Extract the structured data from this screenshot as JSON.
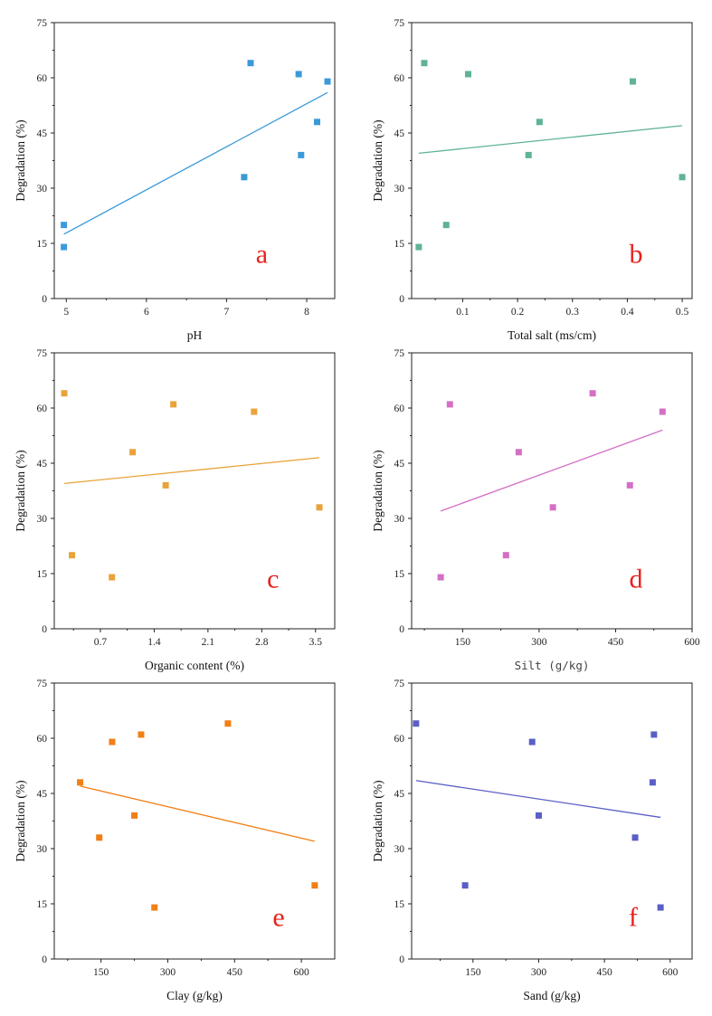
{
  "figure": {
    "ylabel": "Degradation (%)"
  },
  "chart_data": [
    {
      "type": "scatter",
      "panel": "a",
      "letter": "a",
      "xlabel": "pH",
      "ylabel": "Degradation (%)",
      "xlim": [
        4.85,
        8.35
      ],
      "ylim": [
        0,
        75
      ],
      "xticks": [
        5,
        6,
        7,
        8
      ],
      "xtick_labels": [
        "5",
        "6",
        "7",
        "8"
      ],
      "yticks": [
        0,
        15,
        30,
        45,
        60,
        75
      ],
      "color": "#3a9ad9",
      "points": [
        {
          "x": 4.97,
          "y": 20
        },
        {
          "x": 4.97,
          "y": 14
        },
        {
          "x": 7.22,
          "y": 33
        },
        {
          "x": 7.3,
          "y": 64
        },
        {
          "x": 7.9,
          "y": 61
        },
        {
          "x": 7.93,
          "y": 39
        },
        {
          "x": 8.13,
          "y": 48
        },
        {
          "x": 8.26,
          "y": 59
        }
      ],
      "fit": {
        "x": [
          4.97,
          8.26
        ],
        "y": [
          17.5,
          56
        ]
      }
    },
    {
      "type": "scatter",
      "panel": "b",
      "letter": "b",
      "xlabel": "Total salt (ms/cm)",
      "ylabel": "Degradation (%)",
      "xlim": [
        0.007,
        0.518
      ],
      "ylim": [
        0,
        75
      ],
      "xticks": [
        0.1,
        0.2,
        0.3,
        0.4,
        0.5
      ],
      "xtick_labels": [
        "0.1",
        "0.2",
        "0.3",
        "0.4",
        "0.5"
      ],
      "yticks": [
        0,
        15,
        30,
        45,
        60,
        75
      ],
      "color": "#5fb396",
      "points": [
        {
          "x": 0.02,
          "y": 14
        },
        {
          "x": 0.03,
          "y": 64
        },
        {
          "x": 0.07,
          "y": 20
        },
        {
          "x": 0.11,
          "y": 61
        },
        {
          "x": 0.22,
          "y": 39
        },
        {
          "x": 0.24,
          "y": 48
        },
        {
          "x": 0.41,
          "y": 59
        },
        {
          "x": 0.5,
          "y": 33
        }
      ],
      "fit": {
        "x": [
          0.02,
          0.5
        ],
        "y": [
          39.5,
          47
        ]
      }
    },
    {
      "type": "scatter",
      "panel": "c",
      "letter": "c",
      "xlabel": "Organic content (%)",
      "ylabel": "Degradation (%)",
      "xlim": [
        0.1,
        3.75
      ],
      "ylim": [
        0,
        75
      ],
      "xticks": [
        0.7,
        1.4,
        2.1,
        2.8,
        3.5
      ],
      "xtick_labels": [
        "0.7",
        "1.4",
        "2.1",
        "2.8",
        "3.5"
      ],
      "yticks": [
        0,
        15,
        30,
        45,
        60,
        75
      ],
      "color": "#e8a33a",
      "points": [
        {
          "x": 0.23,
          "y": 64
        },
        {
          "x": 0.33,
          "y": 20
        },
        {
          "x": 0.85,
          "y": 14
        },
        {
          "x": 1.12,
          "y": 48
        },
        {
          "x": 1.55,
          "y": 39
        },
        {
          "x": 1.65,
          "y": 61
        },
        {
          "x": 2.7,
          "y": 59
        },
        {
          "x": 3.55,
          "y": 33
        }
      ],
      "fit": {
        "x": [
          0.23,
          3.55
        ],
        "y": [
          39.5,
          46.5
        ]
      }
    },
    {
      "type": "scatter",
      "panel": "d",
      "letter": "d",
      "xlabel": "Silt (g/kg)",
      "ylabel": "Degradation (%)",
      "xlim": [
        50,
        600
      ],
      "ylim": [
        0,
        75
      ],
      "xticks": [
        150,
        300,
        450,
        600
      ],
      "xtick_labels": [
        "150",
        "300",
        "450",
        "600"
      ],
      "yticks": [
        0,
        15,
        30,
        45,
        60,
        75
      ],
      "color": "#d46fc5",
      "points": [
        {
          "x": 107,
          "y": 14
        },
        {
          "x": 125,
          "y": 61
        },
        {
          "x": 235,
          "y": 20
        },
        {
          "x": 260,
          "y": 48
        },
        {
          "x": 327,
          "y": 33
        },
        {
          "x": 405,
          "y": 64
        },
        {
          "x": 478,
          "y": 39
        },
        {
          "x": 542,
          "y": 59
        }
      ],
      "fit": {
        "x": [
          107,
          542
        ],
        "y": [
          32,
          54
        ]
      }
    },
    {
      "type": "scatter",
      "panel": "e",
      "letter": "e",
      "xlabel": "Clay (g/kg)",
      "ylabel": "Degradation (%)",
      "xlim": [
        45,
        675
      ],
      "ylim": [
        0,
        75
      ],
      "xticks": [
        150,
        300,
        450,
        600
      ],
      "xtick_labels": [
        "150",
        "300",
        "450",
        "600"
      ],
      "yticks": [
        0,
        15,
        30,
        45,
        60,
        75
      ],
      "color": "#f07f16",
      "points": [
        {
          "x": 103,
          "y": 48
        },
        {
          "x": 146,
          "y": 33
        },
        {
          "x": 175,
          "y": 59
        },
        {
          "x": 225,
          "y": 39
        },
        {
          "x": 240,
          "y": 61
        },
        {
          "x": 270,
          "y": 14
        },
        {
          "x": 435,
          "y": 64
        },
        {
          "x": 630,
          "y": 20
        }
      ],
      "fit": {
        "x": [
          103,
          630
        ],
        "y": [
          47,
          32
        ]
      }
    },
    {
      "type": "scatter",
      "panel": "f",
      "letter": "f",
      "xlabel": "Sand (g/kg)",
      "ylabel": "Degradation (%)",
      "xlim": [
        10,
        650
      ],
      "ylim": [
        0,
        75
      ],
      "xticks": [
        150,
        300,
        450,
        600
      ],
      "xtick_labels": [
        "150",
        "300",
        "450",
        "600"
      ],
      "yticks": [
        0,
        15,
        30,
        45,
        60,
        75
      ],
      "color": "#5a5fc6",
      "points": [
        {
          "x": 20,
          "y": 64
        },
        {
          "x": 132,
          "y": 20
        },
        {
          "x": 285,
          "y": 59
        },
        {
          "x": 300,
          "y": 39
        },
        {
          "x": 520,
          "y": 33
        },
        {
          "x": 560,
          "y": 48
        },
        {
          "x": 563,
          "y": 61
        },
        {
          "x": 578,
          "y": 14
        }
      ],
      "fit": {
        "x": [
          20,
          578
        ],
        "y": [
          48.5,
          38.5
        ]
      }
    }
  ]
}
